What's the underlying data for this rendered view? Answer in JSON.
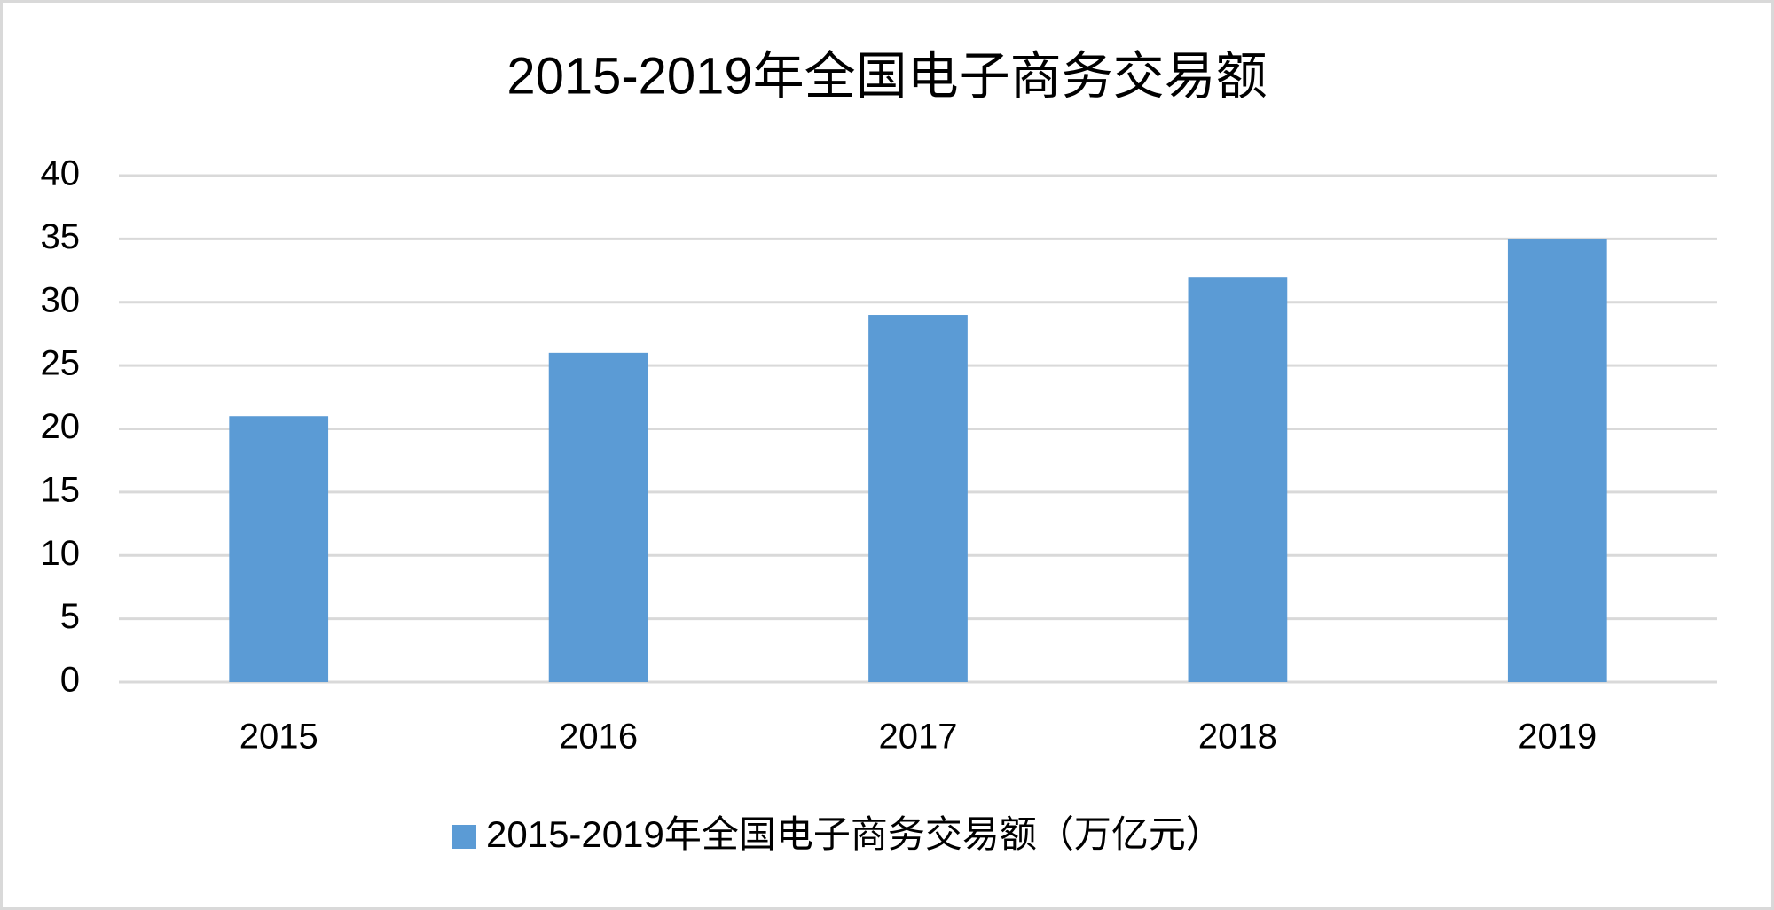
{
  "chart_data": {
    "type": "bar",
    "title": "2015-2019年全国电子商务交易额",
    "categories": [
      "2015",
      "2016",
      "2017",
      "2018",
      "2019"
    ],
    "series": [
      {
        "name": "2015-2019年全国电子商务交易额（万亿元）",
        "color": "#5b9bd5",
        "values": [
          21,
          26,
          29,
          32,
          35
        ]
      }
    ],
    "ylim": [
      0,
      40
    ],
    "yticks": [
      0,
      5,
      10,
      15,
      20,
      25,
      30,
      35,
      40
    ],
    "grid": true,
    "legend": "bottom"
  }
}
